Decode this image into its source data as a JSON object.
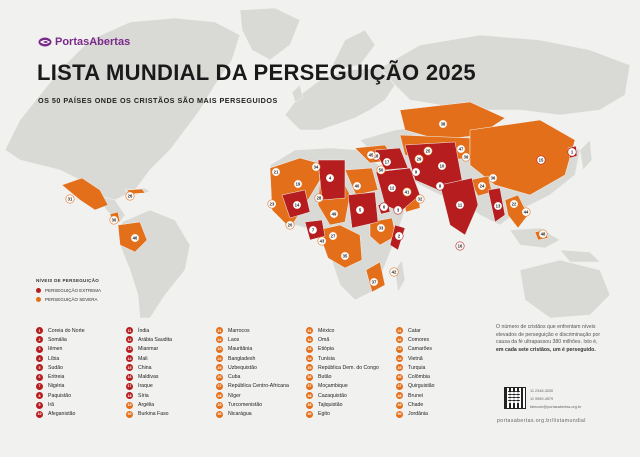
{
  "logo": {
    "text": "PortasAbertas",
    "icon": "fish-logo-icon"
  },
  "title": "LISTA MUNDIAL DA PERSEGUIÇÃO 2025",
  "subtitle": "OS 50 PAÍSES ONDE OS CRISTÃOS SÃO MAIS PERSEGUIDOS",
  "legend": {
    "title": "NÍVEIS DE PERSEGUIÇÃO",
    "items": [
      {
        "label": "PERSEGUIÇÃO EXTREMA",
        "color": "#b51d1f"
      },
      {
        "label": "PERSEGUIÇÃO SEVERA",
        "color": "#e46f1a"
      }
    ]
  },
  "colors": {
    "extreme": "#b51d1f",
    "severe": "#e46f1a",
    "land": "#d9d9d6",
    "ocean": "#f1f1ef"
  },
  "columns": [
    [
      {
        "n": "1",
        "name": "Coreia do Norte",
        "level": "ex"
      },
      {
        "n": "2",
        "name": "Somália",
        "level": "ex"
      },
      {
        "n": "3",
        "name": "Iêmen",
        "level": "ex"
      },
      {
        "n": "4",
        "name": "Líbia",
        "level": "ex"
      },
      {
        "n": "5",
        "name": "Sudão",
        "level": "ex"
      },
      {
        "n": "6",
        "name": "Eritreia",
        "level": "ex"
      },
      {
        "n": "7",
        "name": "Nigéria",
        "level": "ex"
      },
      {
        "n": "8",
        "name": "Paquistão",
        "level": "ex"
      },
      {
        "n": "9",
        "name": "Irã",
        "level": "ex"
      },
      {
        "n": "10",
        "name": "Afeganistão",
        "level": "ex"
      }
    ],
    [
      {
        "n": "11",
        "name": "Índia",
        "level": "ex"
      },
      {
        "n": "12",
        "name": "Arábia Saudita",
        "level": "ex"
      },
      {
        "n": "13",
        "name": "Mianmar",
        "level": "ex"
      },
      {
        "n": "14",
        "name": "Mali",
        "level": "ex"
      },
      {
        "n": "15",
        "name": "China",
        "level": "ex"
      },
      {
        "n": "16",
        "name": "Maldivas",
        "level": "ex"
      },
      {
        "n": "17",
        "name": "Iraque",
        "level": "ex"
      },
      {
        "n": "18",
        "name": "Síria",
        "level": "ex"
      },
      {
        "n": "19",
        "name": "Argélia",
        "level": "sv"
      },
      {
        "n": "20",
        "name": "Burkina Faso",
        "level": "sv"
      }
    ],
    [
      {
        "n": "21",
        "name": "Marrocos",
        "level": "sv"
      },
      {
        "n": "22",
        "name": "Laos",
        "level": "sv"
      },
      {
        "n": "23",
        "name": "Mauritânia",
        "level": "sv"
      },
      {
        "n": "24",
        "name": "Bangladesh",
        "level": "sv"
      },
      {
        "n": "25",
        "name": "Uzbequistão",
        "level": "sv"
      },
      {
        "n": "26",
        "name": "Cuba",
        "level": "sv"
      },
      {
        "n": "27",
        "name": "República Centro-Africana",
        "level": "sv"
      },
      {
        "n": "28",
        "name": "Níger",
        "level": "sv"
      },
      {
        "n": "29",
        "name": "Turcomenistão",
        "level": "sv"
      },
      {
        "n": "30",
        "name": "Nicarágua",
        "level": "sv"
      }
    ],
    [
      {
        "n": "31",
        "name": "México",
        "level": "sv"
      },
      {
        "n": "32",
        "name": "Omã",
        "level": "sv"
      },
      {
        "n": "33",
        "name": "Etiópia",
        "level": "sv"
      },
      {
        "n": "34",
        "name": "Tunísia",
        "level": "sv"
      },
      {
        "n": "35",
        "name": "República Dem. do Congo",
        "level": "sv"
      },
      {
        "n": "36",
        "name": "Butão",
        "level": "sv"
      },
      {
        "n": "37",
        "name": "Moçambique",
        "level": "sv"
      },
      {
        "n": "38",
        "name": "Cazaquistão",
        "level": "sv"
      },
      {
        "n": "39",
        "name": "Tajiquistão",
        "level": "sv"
      },
      {
        "n": "40",
        "name": "Egito",
        "level": "sv"
      }
    ],
    [
      {
        "n": "41",
        "name": "Catar",
        "level": "sv"
      },
      {
        "n": "42",
        "name": "Comores",
        "level": "sv"
      },
      {
        "n": "43",
        "name": "Camarões",
        "level": "sv"
      },
      {
        "n": "44",
        "name": "Vietnã",
        "level": "sv"
      },
      {
        "n": "45",
        "name": "Turquia",
        "level": "sv"
      },
      {
        "n": "46",
        "name": "Colômbia",
        "level": "sv"
      },
      {
        "n": "47",
        "name": "Quirguistão",
        "level": "sv"
      },
      {
        "n": "48",
        "name": "Brunei",
        "level": "sv"
      },
      {
        "n": "49",
        "name": "Chade",
        "level": "sv"
      },
      {
        "n": "50",
        "name": "Jordânia",
        "level": "sv"
      }
    ]
  ],
  "info": {
    "text_before": "O número de cristãos que enfrentam níveis elevados de perseguição e discriminação por causa da fé ultrapassou 380 milhões. Isto é, ",
    "text_bold": "em cada sete cristãos, um é perseguido."
  },
  "contacts": [
    "11 2348-3030",
    "11 9969-4579",
    "falecom@portasabertas.org.br"
  ],
  "website": "portasabertas.org.br/listamundial",
  "markers": [
    {
      "n": "1",
      "level": "ex"
    },
    {
      "n": "2",
      "level": "ex"
    },
    {
      "n": "3",
      "level": "ex"
    },
    {
      "n": "4",
      "level": "ex"
    },
    {
      "n": "5",
      "level": "ex"
    },
    {
      "n": "6",
      "level": "ex"
    },
    {
      "n": "7",
      "level": "ex"
    },
    {
      "n": "8",
      "level": "ex"
    },
    {
      "n": "9",
      "level": "ex"
    },
    {
      "n": "10",
      "level": "ex"
    },
    {
      "n": "11",
      "level": "ex"
    },
    {
      "n": "12",
      "level": "ex"
    },
    {
      "n": "13",
      "level": "ex"
    },
    {
      "n": "14",
      "level": "ex"
    },
    {
      "n": "15",
      "level": "ex"
    },
    {
      "n": "16",
      "level": "ex"
    },
    {
      "n": "17",
      "level": "ex"
    },
    {
      "n": "18",
      "level": "ex"
    },
    {
      "n": "19",
      "level": "sv"
    },
    {
      "n": "20",
      "level": "sv"
    },
    {
      "n": "21",
      "level": "sv"
    },
    {
      "n": "22",
      "level": "sv"
    },
    {
      "n": "23",
      "level": "sv"
    },
    {
      "n": "24",
      "level": "sv"
    },
    {
      "n": "25",
      "level": "sv"
    },
    {
      "n": "26",
      "level": "sv"
    },
    {
      "n": "27",
      "level": "sv"
    },
    {
      "n": "28",
      "level": "sv"
    },
    {
      "n": "29",
      "level": "sv"
    },
    {
      "n": "30",
      "level": "sv"
    },
    {
      "n": "31",
      "level": "sv"
    },
    {
      "n": "32",
      "level": "sv"
    },
    {
      "n": "33",
      "level": "sv"
    },
    {
      "n": "34",
      "level": "sv"
    },
    {
      "n": "35",
      "level": "sv"
    },
    {
      "n": "36",
      "level": "sv"
    },
    {
      "n": "37",
      "level": "sv"
    },
    {
      "n": "38",
      "level": "sv"
    },
    {
      "n": "39",
      "level": "sv"
    },
    {
      "n": "40",
      "level": "sv"
    },
    {
      "n": "41",
      "level": "sv"
    },
    {
      "n": "42",
      "level": "sv"
    },
    {
      "n": "43",
      "level": "sv"
    },
    {
      "n": "44",
      "level": "sv"
    },
    {
      "n": "45",
      "level": "sv"
    },
    {
      "n": "46",
      "level": "sv"
    },
    {
      "n": "47",
      "level": "sv"
    },
    {
      "n": "48",
      "level": "sv"
    },
    {
      "n": "49",
      "level": "sv"
    },
    {
      "n": "50",
      "level": "sv"
    }
  ]
}
